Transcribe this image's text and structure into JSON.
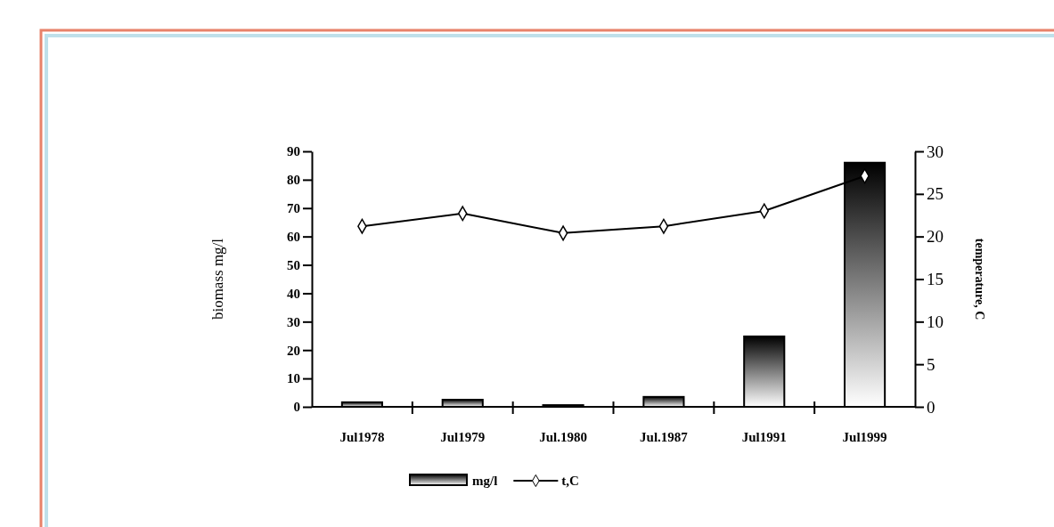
{
  "chart_data": {
    "type": "bar",
    "categories": [
      "Jul1978",
      "Jul1979",
      "Jul.1980",
      "Jul.1987",
      "Jul1991",
      "Jul1999"
    ],
    "series": [
      {
        "name": "mg/l",
        "color": "#000000",
        "values": [
          1.6,
          2.5,
          0.6,
          3.5,
          24.8,
          86
        ]
      },
      {
        "name": "t,C",
        "type": "line",
        "axis": "y2",
        "color": "#000000",
        "marker": "diamond",
        "values": [
          21.2,
          22.7,
          20.4,
          21.2,
          23,
          27.1
        ]
      }
    ],
    "ylabel": "biomass mg/l",
    "y2label": "temperature, C",
    "ylim": [
      0,
      90
    ],
    "yticks": [
      0,
      10,
      20,
      30,
      40,
      50,
      60,
      70,
      80,
      90
    ],
    "y2lim": [
      0,
      30
    ],
    "y2ticks": [
      0,
      5,
      10,
      15,
      20,
      25,
      30
    ],
    "legend": "bottom",
    "grid": false
  }
}
